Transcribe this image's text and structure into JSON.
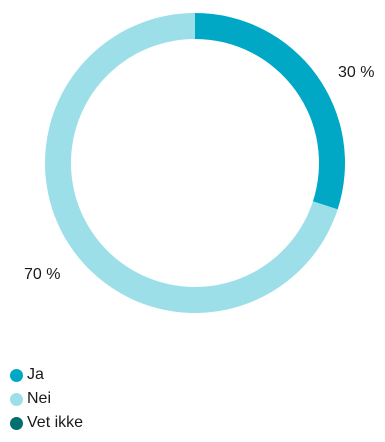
{
  "chart_data": {
    "type": "pie",
    "style": "donut",
    "categories": [
      "Ja",
      "Nei",
      "Vet ikke"
    ],
    "values": [
      30,
      70,
      0
    ],
    "value_labels": [
      "30 %",
      "70 %",
      ""
    ],
    "colors": [
      "#00a8c6",
      "#9ddfe8",
      "#00706e"
    ],
    "legend": {
      "position": "bottom-left",
      "entries": [
        "Ja",
        "Nei",
        "Vet ikke"
      ]
    }
  }
}
